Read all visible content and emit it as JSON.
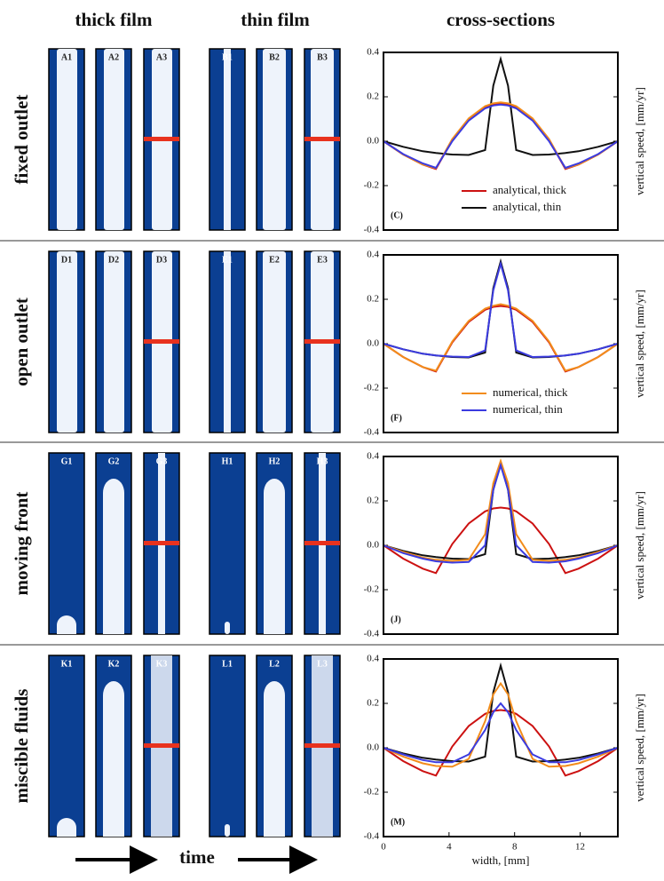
{
  "column_headers": [
    "thick film",
    "thin film",
    "cross-sections"
  ],
  "row_labels": [
    "fixed outlet",
    "open outlet",
    "moving front",
    "miscible fluids"
  ],
  "panel_labels": [
    [
      "A1",
      "A2",
      "A3",
      "B1",
      "B2",
      "B3"
    ],
    [
      "D1",
      "D2",
      "D3",
      "E1",
      "E2",
      "E3"
    ],
    [
      "G1",
      "G2",
      "G3",
      "H1",
      "H2",
      "H3"
    ],
    [
      "K1",
      "K2",
      "K3",
      "L1",
      "L2",
      "L3"
    ]
  ],
  "time_label": "time",
  "chart_data": [
    {
      "type": "line",
      "label": "(C)",
      "ylabel": "vertical speed, [mm/yr]",
      "x": [
        0,
        1.2,
        2.4,
        3.2,
        4.2,
        5.2,
        6.2,
        6.7,
        7.15,
        7.6,
        8.1,
        9.1,
        10.1,
        11.1,
        11.9,
        13.1,
        14.3
      ],
      "xlim": [
        0,
        14.3
      ],
      "ylim": [
        -0.4,
        0.4
      ],
      "yticks": [
        -0.4,
        -0.2,
        {
          "value": 0,
          "label": "0.0"
        },
        0.2,
        0.4
      ],
      "series": [
        {
          "name": "analytical, thick",
          "color": "#cc1111",
          "values": [
            0,
            -0.06,
            -0.105,
            -0.125,
            0.006,
            0.098,
            0.153,
            0.166,
            0.17,
            0.166,
            0.153,
            0.098,
            0.006,
            -0.125,
            -0.105,
            -0.06,
            0
          ]
        },
        {
          "name": "analytical, thin",
          "color": "#111111",
          "values": [
            0,
            -0.025,
            -0.045,
            -0.053,
            -0.06,
            -0.062,
            -0.04,
            0.25,
            0.37,
            0.25,
            -0.04,
            -0.062,
            -0.06,
            -0.053,
            -0.045,
            -0.025,
            0
          ]
        },
        {
          "color": "#f28c1b",
          "values": [
            0,
            -0.06,
            -0.105,
            -0.122,
            0.01,
            0.103,
            0.158,
            0.171,
            0.175,
            0.171,
            0.158,
            0.103,
            0.01,
            -0.122,
            -0.105,
            -0.06,
            0
          ]
        },
        {
          "color": "#3b3be0",
          "values": [
            0,
            -0.058,
            -0.1,
            -0.12,
            0.0,
            0.093,
            0.148,
            0.161,
            0.165,
            0.161,
            0.148,
            0.093,
            0.0,
            -0.12,
            -0.1,
            -0.058,
            0
          ]
        }
      ]
    },
    {
      "type": "line",
      "label": "(F)",
      "ylabel": "vertical speed, [mm/yr]",
      "x": [
        0,
        1.2,
        2.4,
        3.2,
        4.2,
        5.2,
        6.2,
        6.7,
        7.15,
        7.6,
        8.1,
        9.1,
        10.1,
        11.1,
        11.9,
        13.1,
        14.3
      ],
      "xlim": [
        0,
        14.3
      ],
      "ylim": [
        -0.4,
        0.4
      ],
      "yticks": [
        -0.4,
        -0.2,
        {
          "value": 0,
          "label": "0.0"
        },
        0.2,
        0.4
      ],
      "series": [
        {
          "color": "#cc1111",
          "values": [
            0,
            -0.06,
            -0.105,
            -0.125,
            0.006,
            0.098,
            0.153,
            0.166,
            0.17,
            0.166,
            0.153,
            0.098,
            0.006,
            -0.125,
            -0.105,
            -0.06,
            0
          ]
        },
        {
          "color": "#111111",
          "values": [
            0,
            -0.025,
            -0.045,
            -0.053,
            -0.06,
            -0.062,
            -0.04,
            0.25,
            0.37,
            0.25,
            -0.04,
            -0.062,
            -0.06,
            -0.053,
            -0.045,
            -0.025,
            0
          ]
        },
        {
          "name": "numerical, thick",
          "color": "#f28c1b",
          "values": [
            0,
            -0.06,
            -0.105,
            -0.122,
            0.01,
            0.103,
            0.158,
            0.171,
            0.178,
            0.171,
            0.158,
            0.103,
            0.01,
            -0.122,
            -0.105,
            -0.06,
            0
          ]
        },
        {
          "name": "numerical, thin",
          "color": "#3b3be0",
          "values": [
            0,
            -0.025,
            -0.045,
            -0.053,
            -0.058,
            -0.06,
            -0.03,
            0.24,
            0.36,
            0.24,
            -0.03,
            -0.06,
            -0.058,
            -0.053,
            -0.045,
            -0.025,
            0
          ]
        }
      ]
    },
    {
      "type": "line",
      "label": "(J)",
      "ylabel": "vertical speed, [mm/yr]",
      "x": [
        0,
        1.2,
        2.4,
        3.2,
        4.2,
        5.2,
        6.2,
        6.7,
        7.15,
        7.6,
        8.1,
        9.1,
        10.1,
        11.1,
        11.9,
        13.1,
        14.3
      ],
      "xlim": [
        0,
        14.3
      ],
      "ylim": [
        -0.4,
        0.4
      ],
      "yticks": [
        -0.4,
        -0.2,
        {
          "value": 0,
          "label": "0.0"
        },
        0.2,
        0.4
      ],
      "series": [
        {
          "color": "#cc1111",
          "values": [
            0,
            -0.06,
            -0.105,
            -0.125,
            0.006,
            0.098,
            0.153,
            0.166,
            0.17,
            0.166,
            0.153,
            0.098,
            0.006,
            -0.125,
            -0.105,
            -0.06,
            0
          ]
        },
        {
          "color": "#111111",
          "values": [
            0,
            -0.025,
            -0.045,
            -0.053,
            -0.06,
            -0.062,
            -0.04,
            0.25,
            0.37,
            0.25,
            -0.04,
            -0.062,
            -0.06,
            -0.053,
            -0.045,
            -0.025,
            0
          ]
        },
        {
          "color": "#f28c1b",
          "values": [
            0,
            -0.03,
            -0.055,
            -0.065,
            -0.07,
            -0.065,
            0.05,
            0.28,
            0.38,
            0.28,
            0.05,
            -0.065,
            -0.07,
            -0.065,
            -0.055,
            -0.03,
            0
          ]
        },
        {
          "color": "#3b3be0",
          "values": [
            0,
            -0.035,
            -0.06,
            -0.072,
            -0.078,
            -0.075,
            0.0,
            0.25,
            0.36,
            0.25,
            0.0,
            -0.075,
            -0.078,
            -0.072,
            -0.06,
            -0.035,
            0
          ]
        }
      ]
    },
    {
      "type": "line",
      "label": "(M)",
      "ylabel": "vertical speed, [mm/yr]",
      "xlabel": "width, [mm]",
      "x": [
        0,
        1.2,
        2.4,
        3.2,
        4.2,
        5.2,
        6.2,
        6.7,
        7.15,
        7.6,
        8.1,
        9.1,
        10.1,
        11.1,
        11.9,
        13.1,
        14.3
      ],
      "xlim": [
        0,
        14.3
      ],
      "xticks": [
        0,
        4,
        8,
        12
      ],
      "ylim": [
        -0.4,
        0.4
      ],
      "yticks": [
        -0.4,
        -0.2,
        {
          "value": 0,
          "label": "0.0"
        },
        0.2,
        0.4
      ],
      "series": [
        {
          "color": "#cc1111",
          "values": [
            0,
            -0.06,
            -0.105,
            -0.125,
            0.006,
            0.098,
            0.153,
            0.166,
            0.17,
            0.166,
            0.153,
            0.098,
            0.006,
            -0.125,
            -0.105,
            -0.06,
            0
          ]
        },
        {
          "color": "#111111",
          "values": [
            0,
            -0.025,
            -0.045,
            -0.053,
            -0.06,
            -0.062,
            -0.04,
            0.25,
            0.37,
            0.25,
            -0.04,
            -0.062,
            -0.06,
            -0.053,
            -0.045,
            -0.025,
            0
          ]
        },
        {
          "color": "#f28c1b",
          "values": [
            0,
            -0.04,
            -0.07,
            -0.082,
            -0.085,
            -0.05,
            0.12,
            0.24,
            0.29,
            0.24,
            0.12,
            -0.05,
            -0.085,
            -0.082,
            -0.07,
            -0.04,
            0
          ]
        },
        {
          "color": "#3b3be0",
          "values": [
            0,
            -0.03,
            -0.055,
            -0.065,
            -0.065,
            -0.03,
            0.08,
            0.16,
            0.2,
            0.16,
            0.08,
            -0.03,
            -0.065,
            -0.065,
            -0.055,
            -0.03,
            0
          ]
        }
      ]
    }
  ]
}
